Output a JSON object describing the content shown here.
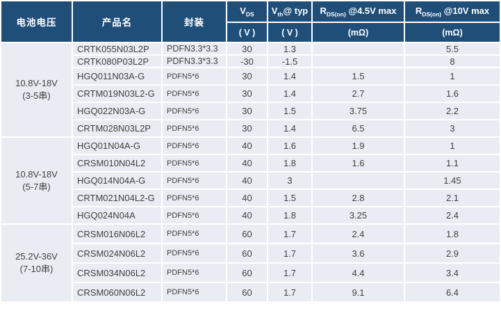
{
  "header": {
    "battery_voltage": "电池电压",
    "product_name": "产品名",
    "package": "封装",
    "spec_cols": [
      {
        "base": "V",
        "sub": "DS",
        "rest": "",
        "unit": "( V )"
      },
      {
        "base": "V",
        "sub": "th",
        "rest": "@ typ",
        "unit": "( V )"
      },
      {
        "base": "R",
        "sub": "DS(on)",
        "rest": " @4.5V max",
        "unit": "(mΩ)"
      },
      {
        "base": "R",
        "sub": "DS(on)",
        "rest": " @10V max",
        "unit": "(mΩ)"
      }
    ]
  },
  "groups": [
    {
      "label_line1": "10.8V-18V",
      "label_line2": "(3-5串)",
      "rows": [
        {
          "product": "CRTK055N03L2P",
          "package": "PDFN3.3*3.3",
          "vds": "30",
          "vth": "1.3",
          "rds45": "",
          "rds10": "5.5"
        },
        {
          "product": "CRTK080P03L2P",
          "package": "PDFN3.3*3.3",
          "vds": "-30",
          "vth": "-1.5",
          "rds45": "",
          "rds10": "8"
        },
        {
          "product": "HGQ011N03A-G",
          "package": "PDFN5*6",
          "vds": "30",
          "vth": "1.4",
          "rds45": "1.5",
          "rds10": "1"
        },
        {
          "product": "CRTM019N03L2-G",
          "package": "PDFN5*6",
          "vds": "30",
          "vth": "1.4",
          "rds45": "2.7",
          "rds10": "1.6"
        },
        {
          "product": "HGQ022N03A-G",
          "package": "PDFN5*6",
          "vds": "30",
          "vth": "1.5",
          "rds45": "3.75",
          "rds10": "2.2"
        },
        {
          "product": "CRTM028N03L2P",
          "package": "PDFN5*6",
          "vds": "30",
          "vth": "1.4",
          "rds45": "6.5",
          "rds10": "3"
        }
      ]
    },
    {
      "label_line1": "10.8V-18V",
      "label_line2": "(5-7串)",
      "rows": [
        {
          "product": "HGQ01N04A-G",
          "package": "PDFN5*6",
          "vds": "40",
          "vth": "1.6",
          "rds45": "1.9",
          "rds10": "1"
        },
        {
          "product": "CRSM010N04L2",
          "package": "PDFN5*6",
          "vds": "40",
          "vth": "1.8",
          "rds45": "1.6",
          "rds10": "1.1"
        },
        {
          "product": "HGQ014N04A-G",
          "package": "PDFN5*6",
          "vds": "40",
          "vth": "3",
          "rds45": "",
          "rds10": "1.45"
        },
        {
          "product": "CRTM021N04L2-G",
          "package": "PDFN5*6",
          "vds": "40",
          "vth": "1.5",
          "rds45": "2.8",
          "rds10": "2.1"
        },
        {
          "product": "HGQ024N04A",
          "package": "PDFN5*6",
          "vds": "40",
          "vth": "1.8",
          "rds45": "3.25",
          "rds10": "2.4"
        }
      ]
    },
    {
      "label_line1": "25.2V-36V",
      "label_line2": "(7-10串)",
      "rows": [
        {
          "product": "CRSM016N06L2",
          "package": "PDFN5*6",
          "vds": "60",
          "vth": "1.7",
          "rds45": "2.4",
          "rds10": "1.8"
        },
        {
          "product": "CRSM024N06L2",
          "package": "PDFN5*6",
          "vds": "60",
          "vth": "1.7",
          "rds45": "3.6",
          "rds10": "2.9"
        },
        {
          "product": "CRSM034N06L2",
          "package": "PDFN5*6",
          "vds": "60",
          "vth": "1.7",
          "rds45": "4.4",
          "rds10": "3.4"
        },
        {
          "product": "CRSM060N06L2",
          "package": "PDFN5*6",
          "vds": "60",
          "vth": "1.7",
          "rds45": "9.1",
          "rds10": "6.4"
        }
      ]
    }
  ],
  "colors": {
    "header_bg": "#1F4E79",
    "header_text": "#FFFFFF",
    "row_bg": "#E9EDF3",
    "grid": "#FFFFFF",
    "cell_text": "#3F3F3F"
  }
}
